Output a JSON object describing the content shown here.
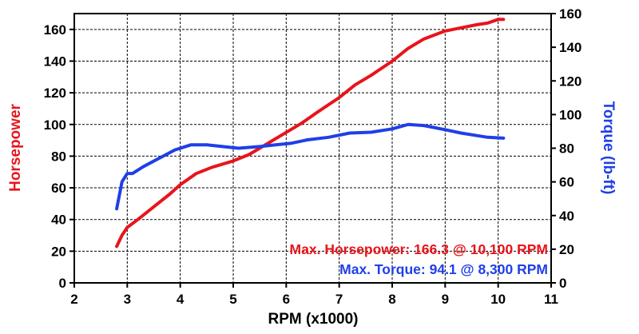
{
  "chart_data": {
    "type": "line",
    "title": "",
    "xlabel": "RPM (x1000)",
    "ylabel_left": "Horsepower",
    "ylabel_right": "Torque (lb-ft)",
    "xlim": [
      2,
      11
    ],
    "ylim_left": [
      0,
      170
    ],
    "ylim_right": [
      0,
      160
    ],
    "x_ticks": [
      2,
      3,
      4,
      5,
      6,
      7,
      8,
      9,
      10,
      11
    ],
    "y_ticks_left": [
      0,
      20,
      40,
      60,
      80,
      100,
      120,
      140,
      160
    ],
    "y_ticks_right": [
      0,
      20,
      40,
      60,
      80,
      100,
      120,
      140,
      160
    ],
    "grid": true,
    "series": [
      {
        "name": "Horsepower",
        "axis": "left",
        "color": "#e8141c",
        "x": [
          2.8,
          2.9,
          3.0,
          3.2,
          3.5,
          3.8,
          4.0,
          4.3,
          4.6,
          5.0,
          5.3,
          5.6,
          6.0,
          6.3,
          6.6,
          7.0,
          7.3,
          7.6,
          8.0,
          8.3,
          8.6,
          9.0,
          9.3,
          9.6,
          9.8,
          10.0,
          10.1
        ],
        "y": [
          23,
          30,
          35,
          40,
          48,
          56,
          62,
          69,
          73,
          77,
          81,
          87,
          95,
          101,
          108,
          117,
          125,
          131,
          140,
          148,
          154,
          159,
          161,
          163,
          164,
          166.3,
          166.3
        ]
      },
      {
        "name": "Torque",
        "axis": "right",
        "color": "#1f3fe8",
        "x": [
          2.8,
          2.9,
          3.0,
          3.1,
          3.3,
          3.6,
          3.9,
          4.2,
          4.5,
          4.8,
          5.1,
          5.5,
          5.8,
          6.1,
          6.4,
          6.8,
          7.2,
          7.6,
          8.0,
          8.3,
          8.6,
          9.0,
          9.3,
          9.6,
          9.8,
          10.1
        ],
        "y": [
          44,
          60,
          65,
          65,
          69,
          74,
          79,
          82,
          82,
          81,
          80,
          81,
          82,
          83,
          85,
          86.5,
          89,
          89.5,
          91.5,
          94.1,
          93.5,
          91,
          89,
          87.5,
          86.5,
          86
        ]
      }
    ],
    "annotations": [
      {
        "text": "Max. Horsepower: 166.3 @ 10,100 RPM",
        "color": "#e8141c"
      },
      {
        "text": "Max. Torque: 94.1 @ 8,300 RPM",
        "color": "#1f3fe8"
      }
    ]
  }
}
